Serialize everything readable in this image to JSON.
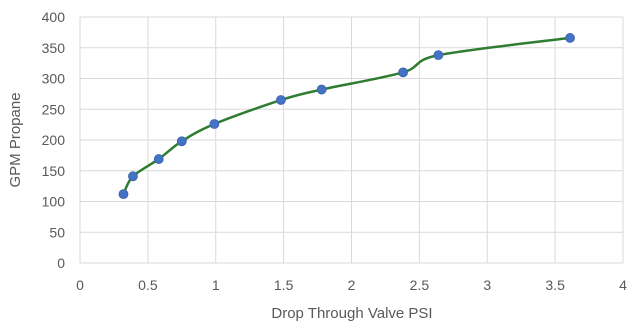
{
  "chart_data": {
    "type": "line",
    "title": "",
    "xlabel": "Drop Through Valve PSI",
    "ylabel": "GPM Propane",
    "xlim": [
      0,
      4
    ],
    "ylim": [
      0,
      400
    ],
    "x_ticks": [
      0,
      0.5,
      1,
      1.5,
      2,
      2.5,
      3,
      3.5,
      4
    ],
    "x_tick_labels": [
      "0",
      "0.5",
      "1",
      "1.5",
      "2",
      "2.5",
      "3",
      "3.5",
      "4"
    ],
    "y_ticks": [
      0,
      50,
      100,
      150,
      200,
      250,
      300,
      350,
      400
    ],
    "y_tick_labels": [
      "0",
      "50",
      "100",
      "150",
      "200",
      "250",
      "300",
      "350",
      "400"
    ],
    "grid": true,
    "legend": "none",
    "series": [
      {
        "line_color": "#2e7d32",
        "marker_color": "#4472c4",
        "points": [
          {
            "x": 0.32,
            "y": 112
          },
          {
            "x": 0.39,
            "y": 141
          },
          {
            "x": 0.58,
            "y": 169
          },
          {
            "x": 0.75,
            "y": 198
          },
          {
            "x": 0.99,
            "y": 226
          },
          {
            "x": 1.48,
            "y": 265
          },
          {
            "x": 1.78,
            "y": 282
          },
          {
            "x": 2.38,
            "y": 310
          },
          {
            "x": 2.64,
            "y": 338
          },
          {
            "x": 3.61,
            "y": 366
          }
        ]
      }
    ]
  },
  "colors": {
    "grid": "#d9d9d9",
    "text": "#595959"
  }
}
